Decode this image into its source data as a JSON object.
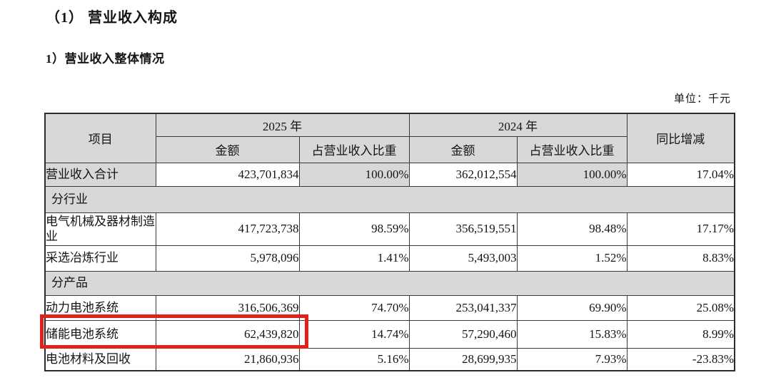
{
  "document": {
    "title": "（1） 营业收入构成",
    "subtitle": "1）营业收入整体情况",
    "unit_label": "单位：千元"
  },
  "table": {
    "header": {
      "item": "项目",
      "year_2025": "2025 年",
      "year_2024": "2024 年",
      "amount": "金额",
      "share_of_revenue": "占营业收入比重",
      "yoy_change": "同比增减"
    },
    "rows": [
      {
        "type": "data",
        "shaded": true,
        "label": "营业收入合计",
        "amount_2025": "423,701,834",
        "share_2025": "100.00%",
        "amount_2024": "362,012,554",
        "share_2024": "100.00%",
        "yoy": "17.04%"
      },
      {
        "type": "section",
        "label": "分行业"
      },
      {
        "type": "data",
        "label": "电气机械及器材制造业",
        "amount_2025": "417,723,738",
        "share_2025": "98.59%",
        "amount_2024": "356,519,551",
        "share_2024": "98.48%",
        "yoy": "17.17%"
      },
      {
        "type": "data",
        "label": "采选冶炼行业",
        "amount_2025": "5,978,096",
        "share_2025": "1.41%",
        "amount_2024": "5,493,003",
        "share_2024": "1.52%",
        "yoy": "8.83%"
      },
      {
        "type": "section",
        "label": "分产品"
      },
      {
        "type": "data",
        "label": "动力电池系统",
        "amount_2025": "316,506,369",
        "share_2025": "74.70%",
        "amount_2024": "253,041,337",
        "share_2024": "69.90%",
        "yoy": "25.08%"
      },
      {
        "type": "data",
        "highlighted": true,
        "label": "储能电池系统",
        "amount_2025": "62,439,820",
        "share_2025": "14.74%",
        "amount_2024": "57,290,460",
        "share_2024": "15.83%",
        "yoy": "8.99%"
      },
      {
        "type": "data",
        "label": "电池材料及回收",
        "amount_2025": "21,860,936",
        "share_2025": "5.16%",
        "amount_2024": "28,699,935",
        "share_2024": "7.93%",
        "yoy": "-23.83%"
      }
    ]
  },
  "highlight": {
    "color": "#e3211b"
  }
}
